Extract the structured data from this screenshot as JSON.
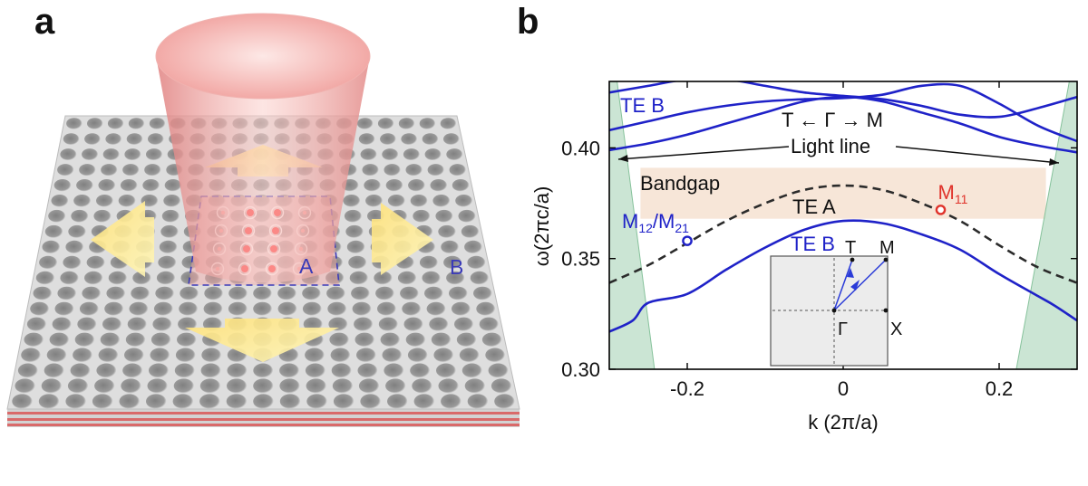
{
  "figure": {
    "panel_a_label": "a",
    "panel_b_label": "b",
    "region_a_label": "A",
    "region_b_label": "B"
  },
  "colors": {
    "te_b": "#1f22c8",
    "te_b_light": "#6b78d8",
    "te_a": "#2b2b2b",
    "bandgap": "#f7e6d8",
    "light_cone": "#b9dcc5",
    "m11": "#e0332b",
    "m12": "#1f22c8"
  },
  "chart_data": {
    "type": "line",
    "xlabel": "k (2π/a)",
    "ylabel": "ω(2πc/a)",
    "xlim": [
      -0.3,
      0.3
    ],
    "ylim": [
      0.3,
      0.43
    ],
    "xticks": [
      -0.2,
      0.0,
      0.2
    ],
    "xtick_labels": [
      "-0.2",
      "0",
      "0.2"
    ],
    "yticks": [
      0.3,
      0.35,
      0.4
    ],
    "ytick_labels": [
      "0.30",
      "0.35",
      "0.40"
    ],
    "grid": false,
    "bandgap": {
      "label": "Bandgap",
      "ymin": 0.368,
      "ymax": 0.391
    },
    "direction_label": "T ← Γ → M",
    "light_line_label": "Light line",
    "annotations": {
      "te_b_top": "TE B",
      "te_a": "TE A",
      "te_b_lower": "TE B"
    },
    "series": [
      {
        "name": "TE A",
        "style": "dashed",
        "x": [
          -0.3,
          -0.25,
          -0.2,
          -0.15,
          -0.1,
          -0.05,
          0.0,
          0.05,
          0.1,
          0.15,
          0.2,
          0.25,
          0.3
        ],
        "y": [
          0.339,
          0.347,
          0.357,
          0.367,
          0.375,
          0.381,
          0.383,
          0.381,
          0.375,
          0.367,
          0.356,
          0.346,
          0.339
        ]
      },
      {
        "name": "TE B",
        "x": [
          -0.3,
          -0.27,
          -0.25,
          -0.2,
          -0.15,
          -0.1,
          -0.05,
          0.0,
          0.05,
          0.1,
          0.15,
          0.2,
          0.25,
          0.27,
          0.3
        ],
        "y": [
          0.317,
          0.322,
          0.33,
          0.334,
          0.345,
          0.355,
          0.363,
          0.367,
          0.366,
          0.361,
          0.354,
          0.343,
          0.333,
          0.329,
          0.322
        ]
      },
      {
        "name": "TE B",
        "x": [
          -0.3,
          -0.25,
          -0.2,
          -0.15,
          -0.1,
          -0.05,
          0.0,
          0.05,
          0.1,
          0.15,
          0.2,
          0.25,
          0.3
        ],
        "y": [
          0.399,
          0.402,
          0.406,
          0.411,
          0.416,
          0.421,
          0.423,
          0.421,
          0.416,
          0.411,
          0.405,
          0.401,
          0.398
        ]
      },
      {
        "name": "TE B",
        "x": [
          -0.3,
          -0.25,
          -0.2,
          -0.15,
          -0.1,
          -0.05,
          0.0,
          0.05,
          0.1,
          0.15,
          0.2,
          0.25,
          0.3
        ],
        "y": [
          0.408,
          0.412,
          0.416,
          0.419,
          0.421,
          0.422,
          0.4225,
          0.424,
          0.428,
          0.428,
          0.42,
          0.41,
          0.403
        ]
      },
      {
        "name": "TE B",
        "x": [
          -0.3,
          -0.25,
          -0.2,
          -0.15,
          -0.1,
          -0.05,
          0.0,
          0.05,
          0.1,
          0.15,
          0.2,
          0.25,
          0.3
        ],
        "y": [
          0.425,
          0.428,
          0.431,
          0.431,
          0.428,
          0.425,
          0.4235,
          0.422,
          0.419,
          0.415,
          0.414,
          0.418,
          0.423
        ]
      }
    ],
    "modes": [
      {
        "label": "M12/M21",
        "x": -0.2,
        "y": 0.358,
        "color": "#1f22c8"
      },
      {
        "label": "M11",
        "x": 0.125,
        "y": 0.372,
        "color": "#e0332b"
      }
    ],
    "inset": {
      "labels": {
        "T": "T",
        "M": "M",
        "Gamma": "Γ",
        "X": "X"
      }
    }
  }
}
